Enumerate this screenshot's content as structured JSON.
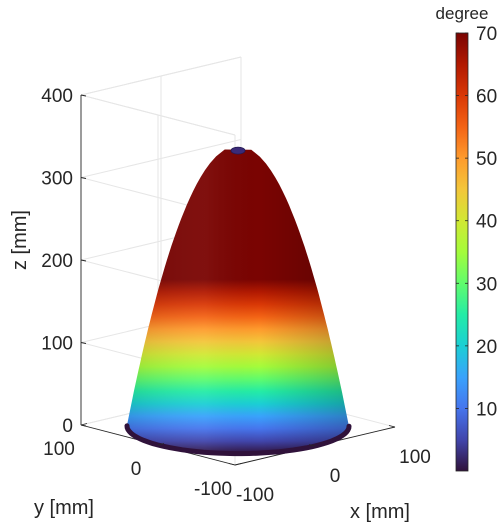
{
  "chart_data": {
    "type": "surface3d",
    "title": "",
    "xlabel": "x [mm]",
    "ylabel": "y [mm]",
    "zlabel": "z [mm]",
    "xlim": [
      -100,
      100
    ],
    "ylim": [
      -100,
      100
    ],
    "zlim": [
      0,
      400
    ],
    "xticks": [
      "-100",
      "0",
      "100"
    ],
    "yticks": [
      "-100",
      "0",
      "100"
    ],
    "zticks": [
      "0",
      "100",
      "200",
      "300",
      "400"
    ],
    "grid": true,
    "surface": {
      "shape": "paraboloid cone",
      "base_radius_mm": 100,
      "top_radius_mm": 12,
      "height_mm": 335
    },
    "colorbar": {
      "title": "degree",
      "min": 0,
      "max": 70,
      "ticks": [
        "10",
        "20",
        "30",
        "40",
        "50",
        "60",
        "70"
      ],
      "tick_values": [
        10,
        20,
        30,
        40,
        50,
        60,
        70
      ],
      "colormap": "turbo",
      "colormap_stops": [
        "#30123b",
        "#4145ab",
        "#4675ed",
        "#39a2fc",
        "#1bcfd4",
        "#24eca6",
        "#61fc6c",
        "#a4fc3b",
        "#d1e834",
        "#f3c63a",
        "#fe9b2d",
        "#f36315",
        "#d93806",
        "#b11901",
        "#7a0402"
      ]
    }
  }
}
